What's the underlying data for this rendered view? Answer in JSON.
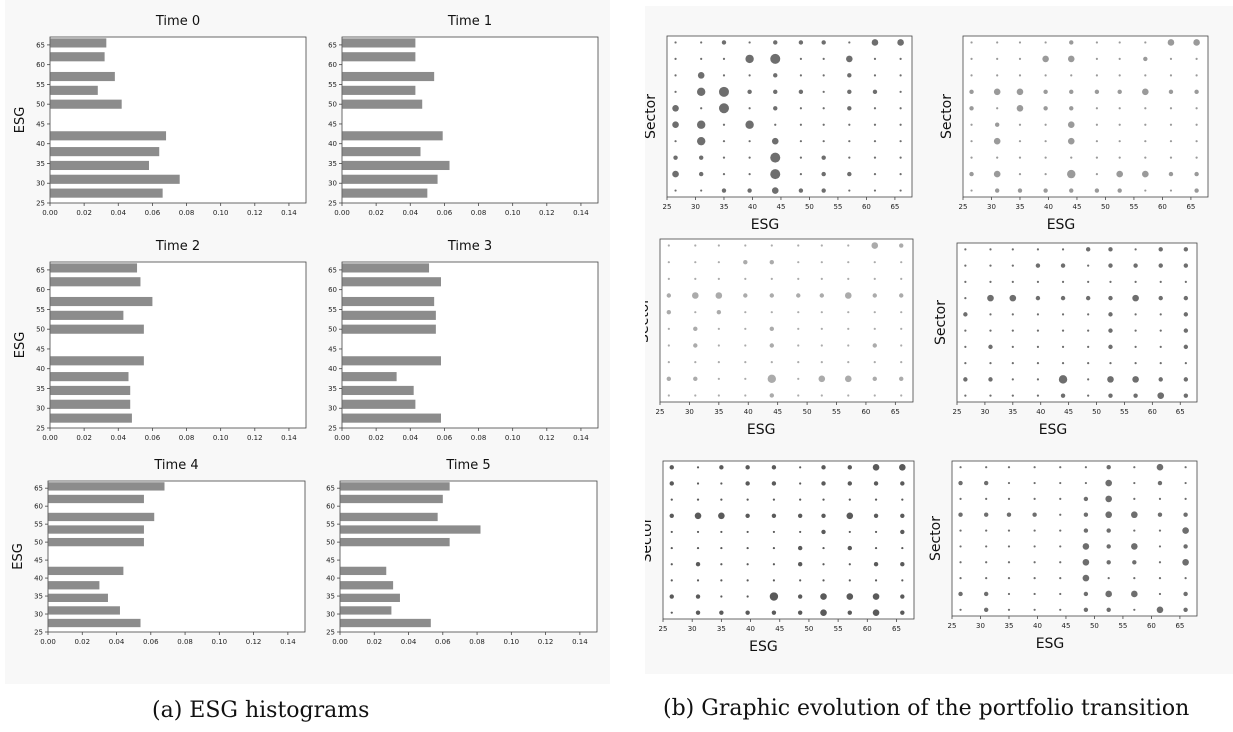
{
  "captions": {
    "a": "(a) ESG histograms",
    "b": "(b) Graphic evolution of the portfolio transition"
  },
  "histograms": {
    "ylabel": "ESG",
    "yticks": [
      25,
      30,
      35,
      40,
      45,
      50,
      55,
      60,
      65
    ],
    "xticks": [
      "0.00",
      "0.02",
      "0.04",
      "0.06",
      "0.08",
      "0.10",
      "0.12",
      "0.14"
    ],
    "bar_color": "#8c8c8c"
  },
  "bubbles": {
    "xlabel": "ESG",
    "ylabel": "Sector",
    "xticks": [
      25,
      30,
      35,
      40,
      45,
      50,
      55,
      60,
      65
    ],
    "x_values": [
      26.5,
      31,
      35,
      39.5,
      44,
      48.5,
      52.5,
      57,
      61.5,
      66
    ],
    "rows": 10
  },
  "chart_data": [
    {
      "type": "bar",
      "orientation": "horizontal",
      "title": "Time 0",
      "ylabel": "ESG",
      "xlim": [
        0,
        0.15
      ],
      "ylim": [
        25,
        67
      ],
      "esg": [
        27.5,
        31,
        34.5,
        38,
        42,
        50,
        53.5,
        57,
        62,
        65.5
      ],
      "values": [
        0.066,
        0.076,
        0.058,
        0.064,
        0.068,
        0.042,
        0.028,
        0.038,
        0.032,
        0.033
      ]
    },
    {
      "type": "bar",
      "orientation": "horizontal",
      "title": "Time 1",
      "ylabel": "ESG",
      "xlim": [
        0,
        0.15
      ],
      "ylim": [
        25,
        67
      ],
      "esg": [
        27.5,
        31,
        34.5,
        38,
        42,
        50,
        53.5,
        57,
        62,
        65.5
      ],
      "values": [
        0.05,
        0.056,
        0.063,
        0.046,
        0.059,
        0.047,
        0.043,
        0.054,
        0.043,
        0.043
      ]
    },
    {
      "type": "bar",
      "orientation": "horizontal",
      "title": "Time 2",
      "ylabel": "ESG",
      "xlim": [
        0,
        0.15
      ],
      "ylim": [
        25,
        67
      ],
      "esg": [
        27.5,
        31,
        34.5,
        38,
        42,
        50,
        53.5,
        57,
        62,
        65.5
      ],
      "values": [
        0.048,
        0.047,
        0.047,
        0.046,
        0.055,
        0.055,
        0.043,
        0.06,
        0.053,
        0.051
      ]
    },
    {
      "type": "bar",
      "orientation": "horizontal",
      "title": "Time 3",
      "ylabel": "ESG",
      "xlim": [
        0,
        0.15
      ],
      "ylim": [
        25,
        67
      ],
      "esg": [
        27.5,
        31,
        34.5,
        38,
        42,
        50,
        53.5,
        57,
        62,
        65.5
      ],
      "values": [
        0.058,
        0.043,
        0.042,
        0.032,
        0.058,
        0.055,
        0.055,
        0.054,
        0.058,
        0.051
      ]
    },
    {
      "type": "bar",
      "orientation": "horizontal",
      "title": "Time 4",
      "ylabel": "ESG",
      "xlim": [
        0,
        0.15
      ],
      "ylim": [
        25,
        67
      ],
      "esg": [
        27.5,
        31,
        34.5,
        38,
        42,
        50,
        53.5,
        57,
        62,
        65.5
      ],
      "values": [
        0.054,
        0.042,
        0.035,
        0.03,
        0.044,
        0.056,
        0.056,
        0.062,
        0.056,
        0.068
      ]
    },
    {
      "type": "bar",
      "orientation": "horizontal",
      "title": "Time 5",
      "ylabel": "ESG",
      "xlim": [
        0,
        0.15
      ],
      "ylim": [
        25,
        67
      ],
      "esg": [
        27.5,
        31,
        34.5,
        38,
        42,
        50,
        53.5,
        57,
        62,
        65.5
      ],
      "values": [
        0.053,
        0.03,
        0.035,
        0.031,
        0.027,
        0.064,
        0.082,
        0.057,
        0.06,
        0.064
      ]
    },
    {
      "type": "scatter",
      "xlabel": "ESG",
      "ylabel": "Sector",
      "xlim": [
        25,
        68
      ],
      "color": "#6e6e6e",
      "sizes": [
        [
          1,
          1,
          2,
          1,
          2,
          2,
          2,
          1,
          3,
          3
        ],
        [
          1,
          1,
          1,
          4,
          5,
          1,
          1,
          3,
          1,
          1
        ],
        [
          1,
          3,
          1,
          1,
          2,
          1,
          1,
          2,
          1,
          1
        ],
        [
          1,
          4,
          5,
          2,
          2,
          2,
          1,
          2,
          2,
          1
        ],
        [
          3,
          1,
          5,
          1,
          2,
          1,
          1,
          2,
          1,
          1
        ],
        [
          3,
          4,
          1,
          4,
          1,
          1,
          1,
          1,
          1,
          1
        ],
        [
          1,
          4,
          1,
          1,
          3,
          1,
          1,
          1,
          1,
          1
        ],
        [
          2,
          2,
          1,
          1,
          5,
          1,
          2,
          1,
          1,
          1
        ],
        [
          3,
          2,
          1,
          1,
          5,
          1,
          2,
          2,
          1,
          1
        ],
        [
          1,
          1,
          2,
          2,
          3,
          2,
          2,
          1,
          1,
          1
        ]
      ]
    },
    {
      "type": "scatter",
      "xlabel": "ESG",
      "ylabel": "Sector",
      "xlim": [
        25,
        68
      ],
      "color": "#9a9a9a",
      "sizes": [
        [
          1,
          1,
          1,
          1,
          2,
          1,
          1,
          1,
          3,
          3
        ],
        [
          1,
          1,
          1,
          3,
          3,
          1,
          1,
          2,
          1,
          1
        ],
        [
          1,
          1,
          1,
          1,
          1,
          1,
          1,
          1,
          1,
          1
        ],
        [
          2,
          3,
          3,
          2,
          2,
          2,
          2,
          3,
          2,
          2
        ],
        [
          2,
          1,
          3,
          2,
          2,
          1,
          1,
          1,
          1,
          1
        ],
        [
          1,
          2,
          1,
          1,
          3,
          1,
          1,
          1,
          1,
          1
        ],
        [
          1,
          3,
          1,
          1,
          3,
          1,
          1,
          1,
          1,
          1
        ],
        [
          1,
          1,
          1,
          1,
          1,
          1,
          1,
          1,
          1,
          1
        ],
        [
          2,
          3,
          1,
          1,
          4,
          1,
          3,
          3,
          2,
          2
        ],
        [
          1,
          2,
          2,
          2,
          2,
          2,
          2,
          1,
          1,
          2
        ]
      ]
    },
    {
      "type": "scatter",
      "xlabel": "ESG",
      "ylabel": "Sector",
      "xlim": [
        25,
        68
      ],
      "color": "#ababab",
      "sizes": [
        [
          1,
          1,
          1,
          1,
          1,
          1,
          1,
          1,
          3,
          2
        ],
        [
          1,
          1,
          1,
          2,
          2,
          1,
          1,
          1,
          1,
          1
        ],
        [
          1,
          1,
          1,
          1,
          1,
          1,
          1,
          1,
          1,
          1
        ],
        [
          2,
          3,
          3,
          2,
          2,
          2,
          2,
          3,
          2,
          2
        ],
        [
          2,
          1,
          2,
          1,
          1,
          1,
          1,
          1,
          1,
          1
        ],
        [
          1,
          2,
          1,
          1,
          2,
          1,
          1,
          1,
          1,
          1
        ],
        [
          1,
          2,
          1,
          1,
          2,
          1,
          1,
          1,
          2,
          1
        ],
        [
          1,
          1,
          1,
          1,
          1,
          1,
          1,
          1,
          1,
          1
        ],
        [
          2,
          2,
          1,
          1,
          4,
          1,
          3,
          3,
          2,
          2
        ],
        [
          1,
          1,
          1,
          1,
          2,
          1,
          1,
          1,
          1,
          1
        ]
      ]
    },
    {
      "type": "scatter",
      "xlabel": "ESG",
      "ylabel": "Sector",
      "xlim": [
        25,
        68
      ],
      "color": "#6e6e6e",
      "sizes": [
        [
          1,
          1,
          1,
          1,
          1,
          2,
          2,
          1,
          2,
          2
        ],
        [
          1,
          1,
          1,
          2,
          2,
          1,
          2,
          2,
          2,
          2
        ],
        [
          1,
          1,
          1,
          1,
          1,
          1,
          1,
          1,
          1,
          1
        ],
        [
          1,
          3,
          3,
          2,
          2,
          2,
          2,
          3,
          2,
          2
        ],
        [
          2,
          1,
          1,
          1,
          1,
          1,
          2,
          1,
          1,
          2
        ],
        [
          1,
          1,
          1,
          1,
          1,
          1,
          2,
          1,
          1,
          2
        ],
        [
          1,
          2,
          1,
          1,
          1,
          1,
          2,
          1,
          1,
          2
        ],
        [
          1,
          1,
          1,
          1,
          1,
          1,
          1,
          1,
          1,
          1
        ],
        [
          2,
          2,
          1,
          1,
          4,
          1,
          3,
          3,
          2,
          2
        ],
        [
          1,
          1,
          1,
          1,
          2,
          1,
          2,
          2,
          3,
          2
        ]
      ]
    },
    {
      "type": "scatter",
      "xlabel": "ESG",
      "ylabel": "Sector",
      "xlim": [
        25,
        68
      ],
      "color": "#5a5a5a",
      "sizes": [
        [
          2,
          1,
          2,
          2,
          2,
          1,
          2,
          2,
          3,
          3
        ],
        [
          2,
          1,
          1,
          2,
          2,
          1,
          2,
          2,
          2,
          2
        ],
        [
          1,
          1,
          1,
          1,
          1,
          1,
          1,
          1,
          1,
          1
        ],
        [
          2,
          3,
          3,
          2,
          2,
          2,
          2,
          3,
          2,
          2
        ],
        [
          1,
          1,
          1,
          1,
          1,
          1,
          2,
          1,
          1,
          2
        ],
        [
          1,
          1,
          1,
          1,
          1,
          2,
          1,
          2,
          1,
          1
        ],
        [
          1,
          2,
          1,
          1,
          1,
          2,
          1,
          1,
          2,
          2
        ],
        [
          1,
          1,
          1,
          1,
          1,
          1,
          1,
          1,
          1,
          1
        ],
        [
          2,
          2,
          1,
          1,
          4,
          2,
          3,
          3,
          3,
          2
        ],
        [
          1,
          2,
          2,
          2,
          2,
          2,
          3,
          2,
          3,
          2
        ]
      ]
    },
    {
      "type": "scatter",
      "xlabel": "ESG",
      "ylabel": "Sector",
      "xlim": [
        25,
        68
      ],
      "color": "#6e6e6e",
      "sizes": [
        [
          1,
          1,
          1,
          1,
          1,
          1,
          2,
          1,
          3,
          1
        ],
        [
          2,
          2,
          1,
          1,
          1,
          1,
          3,
          1,
          2,
          1
        ],
        [
          1,
          1,
          1,
          1,
          1,
          2,
          3,
          1,
          1,
          1
        ],
        [
          2,
          2,
          2,
          2,
          1,
          2,
          3,
          3,
          2,
          2
        ],
        [
          1,
          1,
          1,
          1,
          1,
          2,
          2,
          1,
          1,
          3
        ],
        [
          1,
          1,
          1,
          1,
          1,
          3,
          2,
          3,
          1,
          2
        ],
        [
          1,
          1,
          1,
          1,
          1,
          3,
          2,
          2,
          1,
          3
        ],
        [
          1,
          1,
          1,
          1,
          1,
          3,
          1,
          1,
          1,
          1
        ],
        [
          2,
          2,
          1,
          1,
          1,
          2,
          3,
          3,
          1,
          2
        ],
        [
          1,
          2,
          1,
          1,
          1,
          2,
          2,
          1,
          3,
          2
        ]
      ]
    }
  ]
}
